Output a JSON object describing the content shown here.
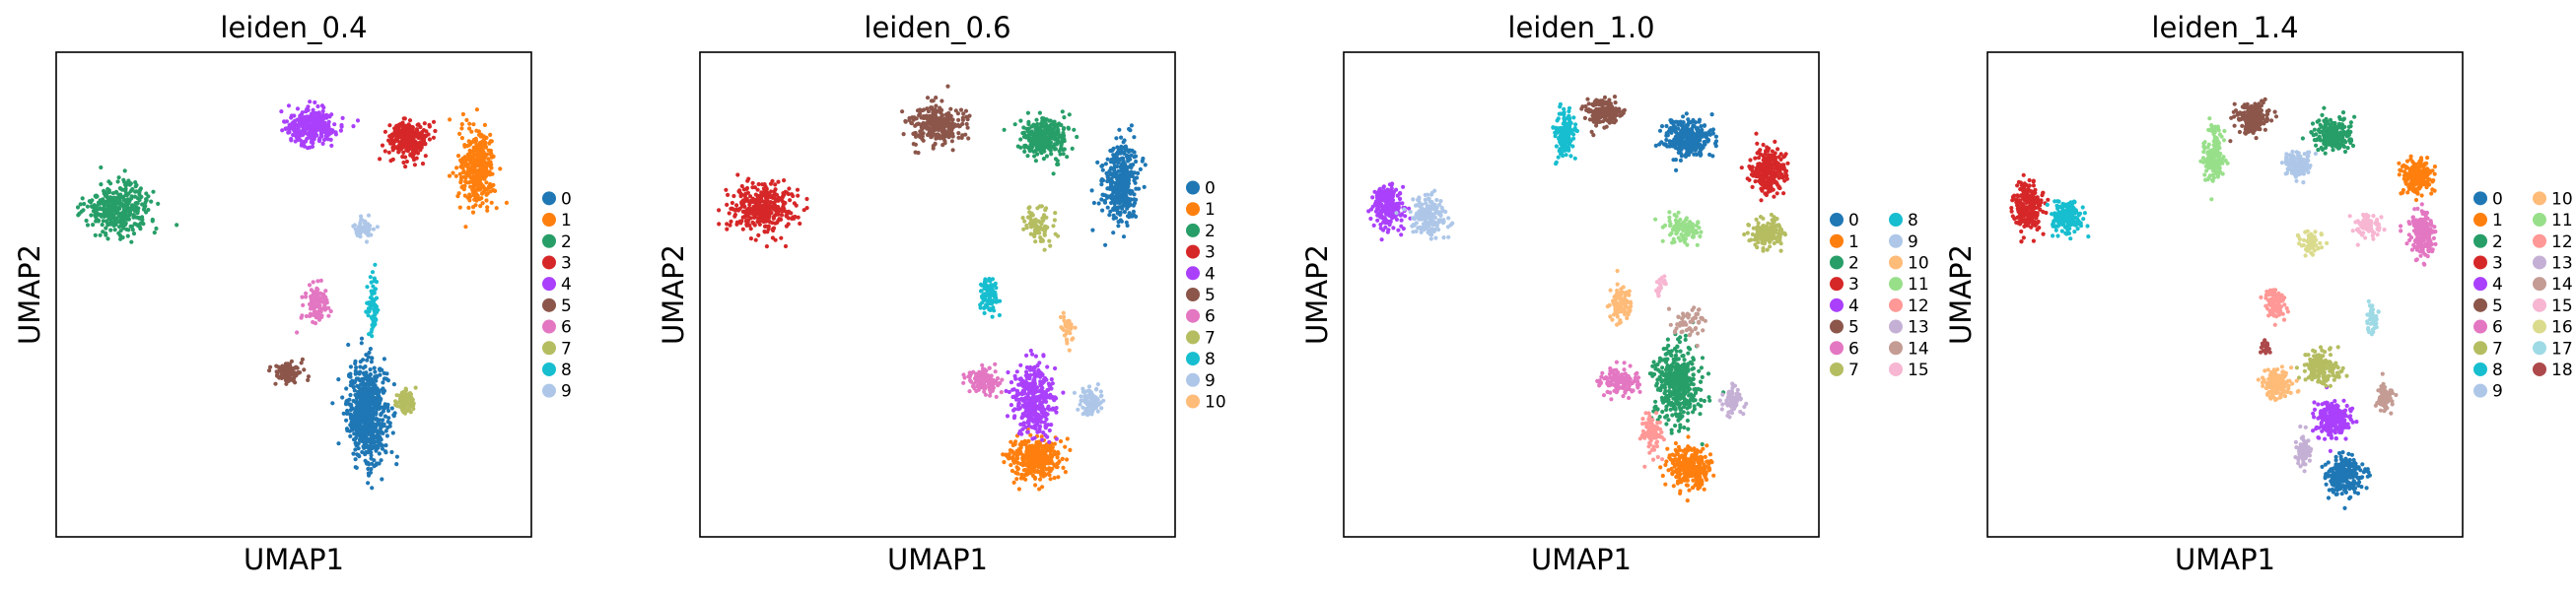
{
  "chart_data": [
    {
      "type": "scatter",
      "title": "leiden_0.4",
      "xlabel": "UMAP1",
      "ylabel": "UMAP2",
      "legend_position": "right",
      "legend_columns": 1,
      "categories": [
        "0",
        "1",
        "2",
        "3",
        "4",
        "5",
        "6",
        "7",
        "8",
        "9"
      ],
      "colors": [
        "#1f77b4",
        "#ff7f0e",
        "#279e68",
        "#d62728",
        "#aa40fc",
        "#8c564b",
        "#e377c2",
        "#b5bd61",
        "#17becf",
        "#aec7e8"
      ],
      "clusters": [
        {
          "label": "0",
          "cx": 0.75,
          "cy": -0.78,
          "rx": 0.16,
          "ry": 0.26,
          "n": 700
        },
        {
          "label": "1",
          "cx": 1.72,
          "cy": 0.62,
          "rx": 0.14,
          "ry": 0.2,
          "n": 360
        },
        {
          "label": "2",
          "cx": -1.45,
          "cy": 0.4,
          "rx": 0.26,
          "ry": 0.13,
          "n": 360
        },
        {
          "label": "3",
          "cx": 1.12,
          "cy": 0.8,
          "rx": 0.16,
          "ry": 0.09,
          "n": 300
        },
        {
          "label": "4",
          "cx": 0.25,
          "cy": 0.87,
          "rx": 0.2,
          "ry": 0.09,
          "n": 300
        },
        {
          "label": "5",
          "cx": 0.05,
          "cy": -0.55,
          "rx": 0.1,
          "ry": 0.06,
          "n": 120
        },
        {
          "label": "6",
          "cx": 0.3,
          "cy": -0.15,
          "rx": 0.1,
          "ry": 0.1,
          "n": 110
        },
        {
          "label": "7",
          "cx": 1.1,
          "cy": -0.72,
          "rx": 0.07,
          "ry": 0.06,
          "n": 90
        },
        {
          "label": "8",
          "cx": 0.8,
          "cy": -0.18,
          "rx": 0.05,
          "ry": 0.16,
          "n": 70
        },
        {
          "label": "9",
          "cx": 0.72,
          "cy": 0.28,
          "rx": 0.08,
          "ry": 0.06,
          "n": 50
        }
      ]
    },
    {
      "type": "scatter",
      "title": "leiden_0.6",
      "xlabel": "UMAP1",
      "ylabel": "UMAP2",
      "legend_position": "right",
      "legend_columns": 1,
      "categories": [
        "0",
        "1",
        "2",
        "3",
        "4",
        "5",
        "6",
        "7",
        "8",
        "9",
        "10"
      ],
      "colors": [
        "#1f77b4",
        "#ff7f0e",
        "#279e68",
        "#d62728",
        "#aa40fc",
        "#8c564b",
        "#e377c2",
        "#b5bd61",
        "#17becf",
        "#aec7e8",
        "#ffbb78"
      ],
      "clusters": [
        {
          "label": "0",
          "cx": 1.72,
          "cy": 0.55,
          "rx": 0.14,
          "ry": 0.22,
          "n": 380
        },
        {
          "label": "1",
          "cx": 0.95,
          "cy": -1.05,
          "rx": 0.2,
          "ry": 0.1,
          "n": 380
        },
        {
          "label": "2",
          "cx": 1.05,
          "cy": 0.8,
          "rx": 0.2,
          "ry": 0.1,
          "n": 300
        },
        {
          "label": "3",
          "cx": -1.45,
          "cy": 0.4,
          "rx": 0.26,
          "ry": 0.13,
          "n": 360
        },
        {
          "label": "4",
          "cx": 0.95,
          "cy": -0.7,
          "rx": 0.16,
          "ry": 0.18,
          "n": 400
        },
        {
          "label": "5",
          "cx": 0.1,
          "cy": 0.88,
          "rx": 0.22,
          "ry": 0.1,
          "n": 280
        },
        {
          "label": "6",
          "cx": 0.5,
          "cy": -0.6,
          "rx": 0.12,
          "ry": 0.07,
          "n": 140
        },
        {
          "label": "7",
          "cx": 1.0,
          "cy": 0.3,
          "rx": 0.12,
          "ry": 0.1,
          "n": 80
        },
        {
          "label": "8",
          "cx": 0.55,
          "cy": -0.1,
          "rx": 0.08,
          "ry": 0.1,
          "n": 90
        },
        {
          "label": "9",
          "cx": 1.45,
          "cy": -0.72,
          "rx": 0.08,
          "ry": 0.07,
          "n": 90
        },
        {
          "label": "10",
          "cx": 1.25,
          "cy": -0.3,
          "rx": 0.05,
          "ry": 0.08,
          "n": 40
        }
      ]
    },
    {
      "type": "scatter",
      "title": "leiden_1.0",
      "xlabel": "UMAP1",
      "ylabel": "UMAP2",
      "legend_position": "right",
      "legend_columns": 2,
      "categories": [
        "0",
        "1",
        "2",
        "3",
        "4",
        "5",
        "6",
        "7",
        "8",
        "9",
        "10",
        "11",
        "12",
        "13",
        "14",
        "15"
      ],
      "colors": [
        "#1f77b4",
        "#ff7f0e",
        "#279e68",
        "#d62728",
        "#aa40fc",
        "#8c564b",
        "#e377c2",
        "#b5bd61",
        "#17becf",
        "#aec7e8",
        "#ffbb78",
        "#98df8a",
        "#ff9896",
        "#c5b0d5",
        "#c49c94",
        "#f7b6d2"
      ],
      "clusters": [
        {
          "label": "0",
          "cx": 1.05,
          "cy": 0.8,
          "rx": 0.2,
          "ry": 0.1,
          "n": 300
        },
        {
          "label": "1",
          "cx": 1.05,
          "cy": -1.1,
          "rx": 0.16,
          "ry": 0.1,
          "n": 320
        },
        {
          "label": "2",
          "cx": 0.95,
          "cy": -0.62,
          "rx": 0.18,
          "ry": 0.2,
          "n": 420
        },
        {
          "label": "3",
          "cx": 1.75,
          "cy": 0.62,
          "rx": 0.14,
          "ry": 0.12,
          "n": 260
        },
        {
          "label": "4",
          "cx": -1.6,
          "cy": 0.4,
          "rx": 0.12,
          "ry": 0.12,
          "n": 220
        },
        {
          "label": "5",
          "cx": 0.3,
          "cy": 0.95,
          "rx": 0.14,
          "ry": 0.07,
          "n": 180
        },
        {
          "label": "6",
          "cx": 0.45,
          "cy": -0.6,
          "rx": 0.14,
          "ry": 0.07,
          "n": 140
        },
        {
          "label": "7",
          "cx": 1.75,
          "cy": 0.25,
          "rx": 0.13,
          "ry": 0.08,
          "n": 160
        },
        {
          "label": "8",
          "cx": -0.05,
          "cy": 0.82,
          "rx": 0.08,
          "ry": 0.12,
          "n": 150
        },
        {
          "label": "9",
          "cx": -1.25,
          "cy": 0.35,
          "rx": 0.14,
          "ry": 0.1,
          "n": 170
        },
        {
          "label": "10",
          "cx": 0.45,
          "cy": -0.15,
          "rx": 0.09,
          "ry": 0.1,
          "n": 100
        },
        {
          "label": "11",
          "cx": 1.0,
          "cy": 0.28,
          "rx": 0.15,
          "ry": 0.08,
          "n": 90
        },
        {
          "label": "12",
          "cx": 0.72,
          "cy": -0.9,
          "rx": 0.08,
          "ry": 0.1,
          "n": 100
        },
        {
          "label": "13",
          "cx": 1.45,
          "cy": -0.72,
          "rx": 0.08,
          "ry": 0.07,
          "n": 80
        },
        {
          "label": "14",
          "cx": 1.05,
          "cy": -0.25,
          "rx": 0.12,
          "ry": 0.08,
          "n": 60
        },
        {
          "label": "15",
          "cx": 0.8,
          "cy": -0.05,
          "rx": 0.04,
          "ry": 0.05,
          "n": 25
        }
      ]
    },
    {
      "type": "scatter",
      "title": "leiden_1.4",
      "xlabel": "UMAP1",
      "ylabel": "UMAP2",
      "legend_position": "right",
      "legend_columns": 2,
      "categories": [
        "0",
        "1",
        "2",
        "3",
        "4",
        "5",
        "6",
        "7",
        "8",
        "9",
        "10",
        "11",
        "12",
        "13",
        "14",
        "15",
        "16",
        "17",
        "18"
      ],
      "colors": [
        "#1f77b4",
        "#ff7f0e",
        "#279e68",
        "#d62728",
        "#aa40fc",
        "#8c564b",
        "#e377c2",
        "#b5bd61",
        "#17becf",
        "#aec7e8",
        "#ffbb78",
        "#98df8a",
        "#ff9896",
        "#c5b0d5",
        "#c49c94",
        "#f7b6d2",
        "#dbdb8d",
        "#9edae5",
        "#ad494a"
      ],
      "clusters": [
        {
          "label": "0",
          "cx": 1.15,
          "cy": -1.15,
          "rx": 0.15,
          "ry": 0.1,
          "n": 260
        },
        {
          "label": "1",
          "cx": 1.8,
          "cy": 0.58,
          "rx": 0.12,
          "ry": 0.09,
          "n": 200
        },
        {
          "label": "2",
          "cx": 1.05,
          "cy": 0.82,
          "rx": 0.15,
          "ry": 0.09,
          "n": 220
        },
        {
          "label": "3",
          "cx": -1.65,
          "cy": 0.4,
          "rx": 0.12,
          "ry": 0.13,
          "n": 240
        },
        {
          "label": "4",
          "cx": 1.05,
          "cy": -0.82,
          "rx": 0.14,
          "ry": 0.09,
          "n": 230
        },
        {
          "label": "5",
          "cx": 0.35,
          "cy": 0.92,
          "rx": 0.14,
          "ry": 0.08,
          "n": 180
        },
        {
          "label": "6",
          "cx": 1.85,
          "cy": 0.25,
          "rx": 0.1,
          "ry": 0.12,
          "n": 200
        },
        {
          "label": "7",
          "cx": 0.95,
          "cy": -0.52,
          "rx": 0.14,
          "ry": 0.08,
          "n": 180
        },
        {
          "label": "8",
          "cx": -1.3,
          "cy": 0.35,
          "rx": 0.12,
          "ry": 0.09,
          "n": 160
        },
        {
          "label": "9",
          "cx": 0.75,
          "cy": 0.65,
          "rx": 0.1,
          "ry": 0.06,
          "n": 130
        },
        {
          "label": "10",
          "cx": 0.55,
          "cy": -0.62,
          "rx": 0.12,
          "ry": 0.08,
          "n": 160
        },
        {
          "label": "11",
          "cx": 0.0,
          "cy": 0.7,
          "rx": 0.08,
          "ry": 0.13,
          "n": 140
        },
        {
          "label": "12",
          "cx": 0.55,
          "cy": -0.15,
          "rx": 0.08,
          "ry": 0.1,
          "n": 90
        },
        {
          "label": "13",
          "cx": 0.8,
          "cy": -1.0,
          "rx": 0.06,
          "ry": 0.08,
          "n": 80
        },
        {
          "label": "14",
          "cx": 1.5,
          "cy": -0.7,
          "rx": 0.07,
          "ry": 0.07,
          "n": 80
        },
        {
          "label": "15",
          "cx": 1.35,
          "cy": 0.3,
          "rx": 0.1,
          "ry": 0.08,
          "n": 70
        },
        {
          "label": "16",
          "cx": 0.85,
          "cy": 0.2,
          "rx": 0.1,
          "ry": 0.06,
          "n": 60
        },
        {
          "label": "17",
          "cx": 1.4,
          "cy": -0.25,
          "rx": 0.05,
          "ry": 0.09,
          "n": 40
        },
        {
          "label": "18",
          "cx": 0.45,
          "cy": -0.4,
          "rx": 0.04,
          "ry": 0.04,
          "n": 20
        }
      ]
    }
  ]
}
